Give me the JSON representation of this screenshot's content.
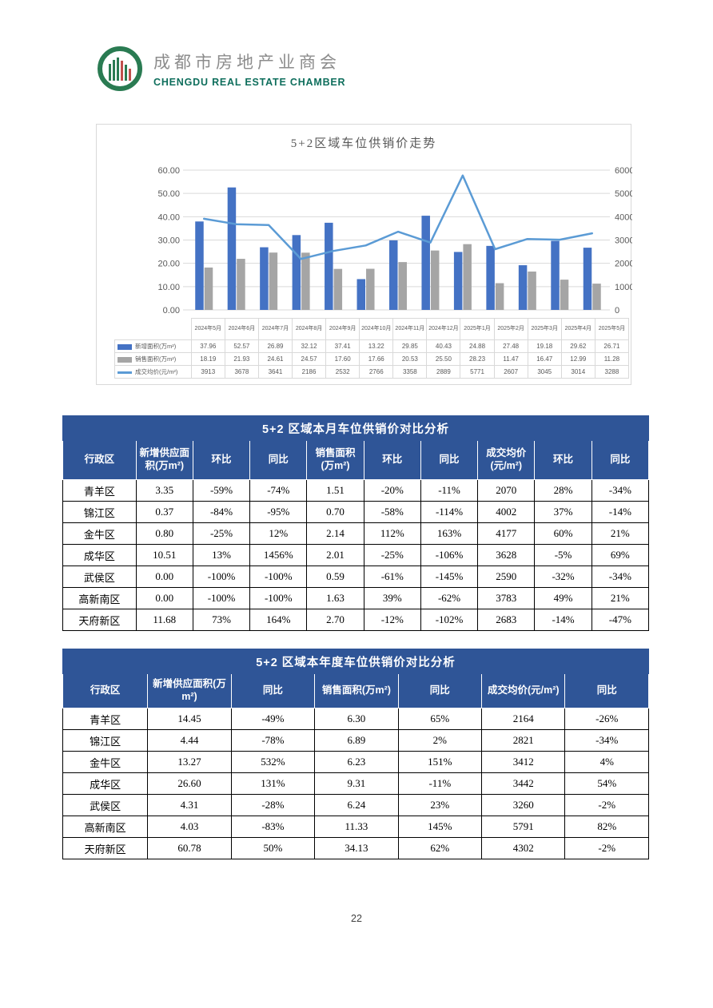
{
  "header": {
    "org_cn": "成都市房地产业商会",
    "org_en": "CHENGDU REAL ESTATE CHAMBER"
  },
  "chart_data": {
    "type": "bar",
    "title": "5+2区域车位供销价走势",
    "categories": [
      "2024年5月",
      "2024年6月",
      "2024年7月",
      "2024年8月",
      "2024年9月",
      "2024年10月",
      "2024年11月",
      "2024年12月",
      "2025年1月",
      "2025年2月",
      "2025年3月",
      "2025年4月",
      "2025年5月"
    ],
    "series": [
      {
        "name": "新增面积(万m²)",
        "type": "bar",
        "axis": "left",
        "color": "#4472c4",
        "values": [
          37.96,
          52.57,
          26.89,
          32.12,
          37.41,
          13.22,
          29.85,
          40.43,
          24.88,
          27.48,
          19.18,
          29.62,
          26.71
        ]
      },
      {
        "name": "销售面积(万m²)",
        "type": "bar",
        "axis": "left",
        "color": "#a5a5a5",
        "values": [
          18.19,
          21.93,
          24.61,
          24.57,
          17.6,
          17.66,
          20.53,
          25.5,
          28.23,
          11.47,
          16.47,
          12.99,
          11.28
        ]
      },
      {
        "name": "成交均价(元/m²)",
        "type": "line",
        "axis": "right",
        "color": "#5b9bd5",
        "values": [
          3913,
          3678,
          3641,
          2186,
          2532,
          2766,
          3358,
          2889,
          5771,
          2607,
          3045,
          3014,
          3288
        ]
      }
    ],
    "left_axis": {
      "min": 0,
      "max": 60,
      "step": 10,
      "labels": [
        "0.00",
        "10.00",
        "20.00",
        "30.00",
        "40.00",
        "50.00",
        "60.00"
      ]
    },
    "right_axis": {
      "min": 0,
      "max": 6000,
      "step": 1000,
      "labels": [
        "0",
        "1000",
        "2000",
        "3000",
        "4000",
        "5000",
        "6000"
      ]
    },
    "grid": true,
    "legend_position": "bottom-table"
  },
  "monthly_table": {
    "title": "5+2 区域本月车位供销价对比分析",
    "headers": [
      "行政区",
      "新增供应面积(万m²)",
      "环比",
      "同比",
      "销售面积(万m²)",
      "环比",
      "同比",
      "成交均价(元/m²)",
      "环比",
      "同比"
    ],
    "rows": [
      [
        "青羊区",
        "3.35",
        "-59%",
        "-74%",
        "1.51",
        "-20%",
        "-11%",
        "2070",
        "28%",
        "-34%"
      ],
      [
        "锦江区",
        "0.37",
        "-84%",
        "-95%",
        "0.70",
        "-58%",
        "-114%",
        "4002",
        "37%",
        "-14%"
      ],
      [
        "金牛区",
        "0.80",
        "-25%",
        "12%",
        "2.14",
        "112%",
        "163%",
        "4177",
        "60%",
        "21%"
      ],
      [
        "成华区",
        "10.51",
        "13%",
        "1456%",
        "2.01",
        "-25%",
        "-106%",
        "3628",
        "-5%",
        "69%"
      ],
      [
        "武侯区",
        "0.00",
        "-100%",
        "-100%",
        "0.59",
        "-61%",
        "-145%",
        "2590",
        "-32%",
        "-34%"
      ],
      [
        "高新南区",
        "0.00",
        "-100%",
        "-100%",
        "1.63",
        "39%",
        "-62%",
        "3783",
        "49%",
        "21%"
      ],
      [
        "天府新区",
        "11.68",
        "73%",
        "164%",
        "2.70",
        "-12%",
        "-102%",
        "2683",
        "-14%",
        "-47%"
      ]
    ]
  },
  "yearly_table": {
    "title": "5+2 区域本年度车位供销价对比分析",
    "headers": [
      "行政区",
      "新增供应面积(万m²)",
      "同比",
      "销售面积(万m²)",
      "同比",
      "成交均价(元/m²)",
      "同比"
    ],
    "rows": [
      [
        "青羊区",
        "14.45",
        "-49%",
        "6.30",
        "65%",
        "2164",
        "-26%"
      ],
      [
        "锦江区",
        "4.44",
        "-78%",
        "6.89",
        "2%",
        "2821",
        "-34%"
      ],
      [
        "金牛区",
        "13.27",
        "532%",
        "6.23",
        "151%",
        "3412",
        "4%"
      ],
      [
        "成华区",
        "26.60",
        "131%",
        "9.31",
        "-11%",
        "3442",
        "54%"
      ],
      [
        "武侯区",
        "4.31",
        "-28%",
        "6.24",
        "23%",
        "3260",
        "-2%"
      ],
      [
        "高新南区",
        "4.03",
        "-83%",
        "11.33",
        "145%",
        "5791",
        "82%"
      ],
      [
        "天府新区",
        "60.78",
        "50%",
        "34.13",
        "62%",
        "4302",
        "-2%"
      ]
    ]
  },
  "page": {
    "number": "22"
  }
}
